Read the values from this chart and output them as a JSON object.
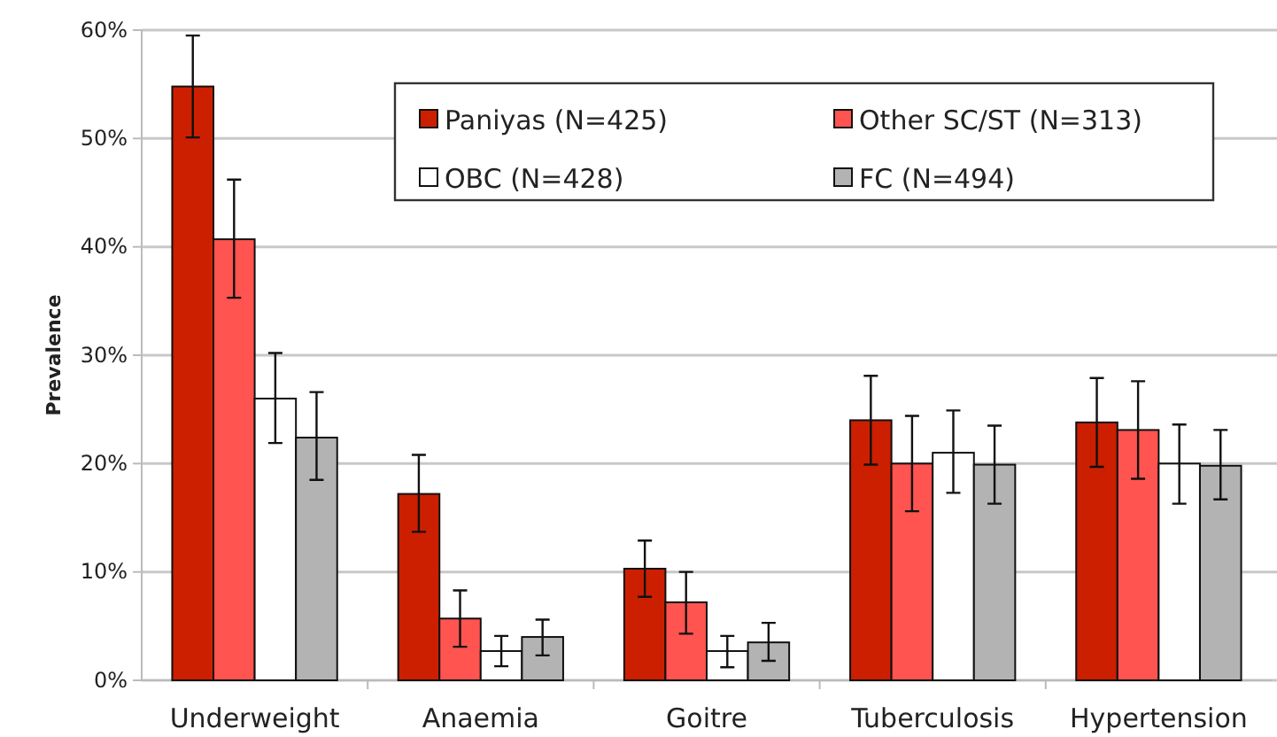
{
  "chart_data": {
    "type": "bar",
    "ylabel": "Prevalence",
    "categories": [
      "Underweight",
      "Anaemia",
      "Goitre",
      "Tuberculosis",
      "Hypertension"
    ],
    "series": [
      {
        "name": "Paniyas (N=425)",
        "color": "#cc1f00",
        "values": [
          54.8,
          17.2,
          10.3,
          24.0,
          23.8
        ],
        "errors": [
          [
            50.1,
            59.5
          ],
          [
            13.7,
            20.8
          ],
          [
            7.7,
            12.9
          ],
          [
            19.9,
            28.1
          ],
          [
            19.7,
            27.9
          ]
        ]
      },
      {
        "name": "Other SC/ST (N=313)",
        "color": "#ff5450",
        "values": [
          40.7,
          5.7,
          7.2,
          20.0,
          23.1
        ],
        "errors": [
          [
            35.3,
            46.2
          ],
          [
            3.1,
            8.3
          ],
          [
            4.3,
            10.0
          ],
          [
            15.6,
            24.4
          ],
          [
            18.6,
            27.6
          ]
        ]
      },
      {
        "name": "OBC (N=428)",
        "color": "#ffffff",
        "values": [
          26.0,
          2.7,
          2.7,
          21.0,
          20.0
        ],
        "errors": [
          [
            21.9,
            30.2
          ],
          [
            1.3,
            4.1
          ],
          [
            1.2,
            4.1
          ],
          [
            17.3,
            24.9
          ],
          [
            16.3,
            23.6
          ]
        ]
      },
      {
        "name": "FC (N=494)",
        "color": "#b3b3b3",
        "values": [
          22.4,
          4.0,
          3.5,
          19.9,
          19.8
        ],
        "errors": [
          [
            18.5,
            26.6
          ],
          [
            2.3,
            5.6
          ],
          [
            1.8,
            5.3
          ],
          [
            16.3,
            23.5
          ],
          [
            16.7,
            23.1
          ]
        ]
      }
    ],
    "ylim": [
      0,
      60
    ],
    "yticks": [
      {
        "value": 0,
        "label": "0%"
      },
      {
        "value": 10,
        "label": "10%"
      },
      {
        "value": 20,
        "label": "20%"
      },
      {
        "value": 30,
        "label": "30%"
      },
      {
        "value": 40,
        "label": "40%"
      },
      {
        "value": 50,
        "label": "50%"
      },
      {
        "value": 60,
        "label": "60%"
      }
    ],
    "grid": "y",
    "legend": "top right"
  }
}
